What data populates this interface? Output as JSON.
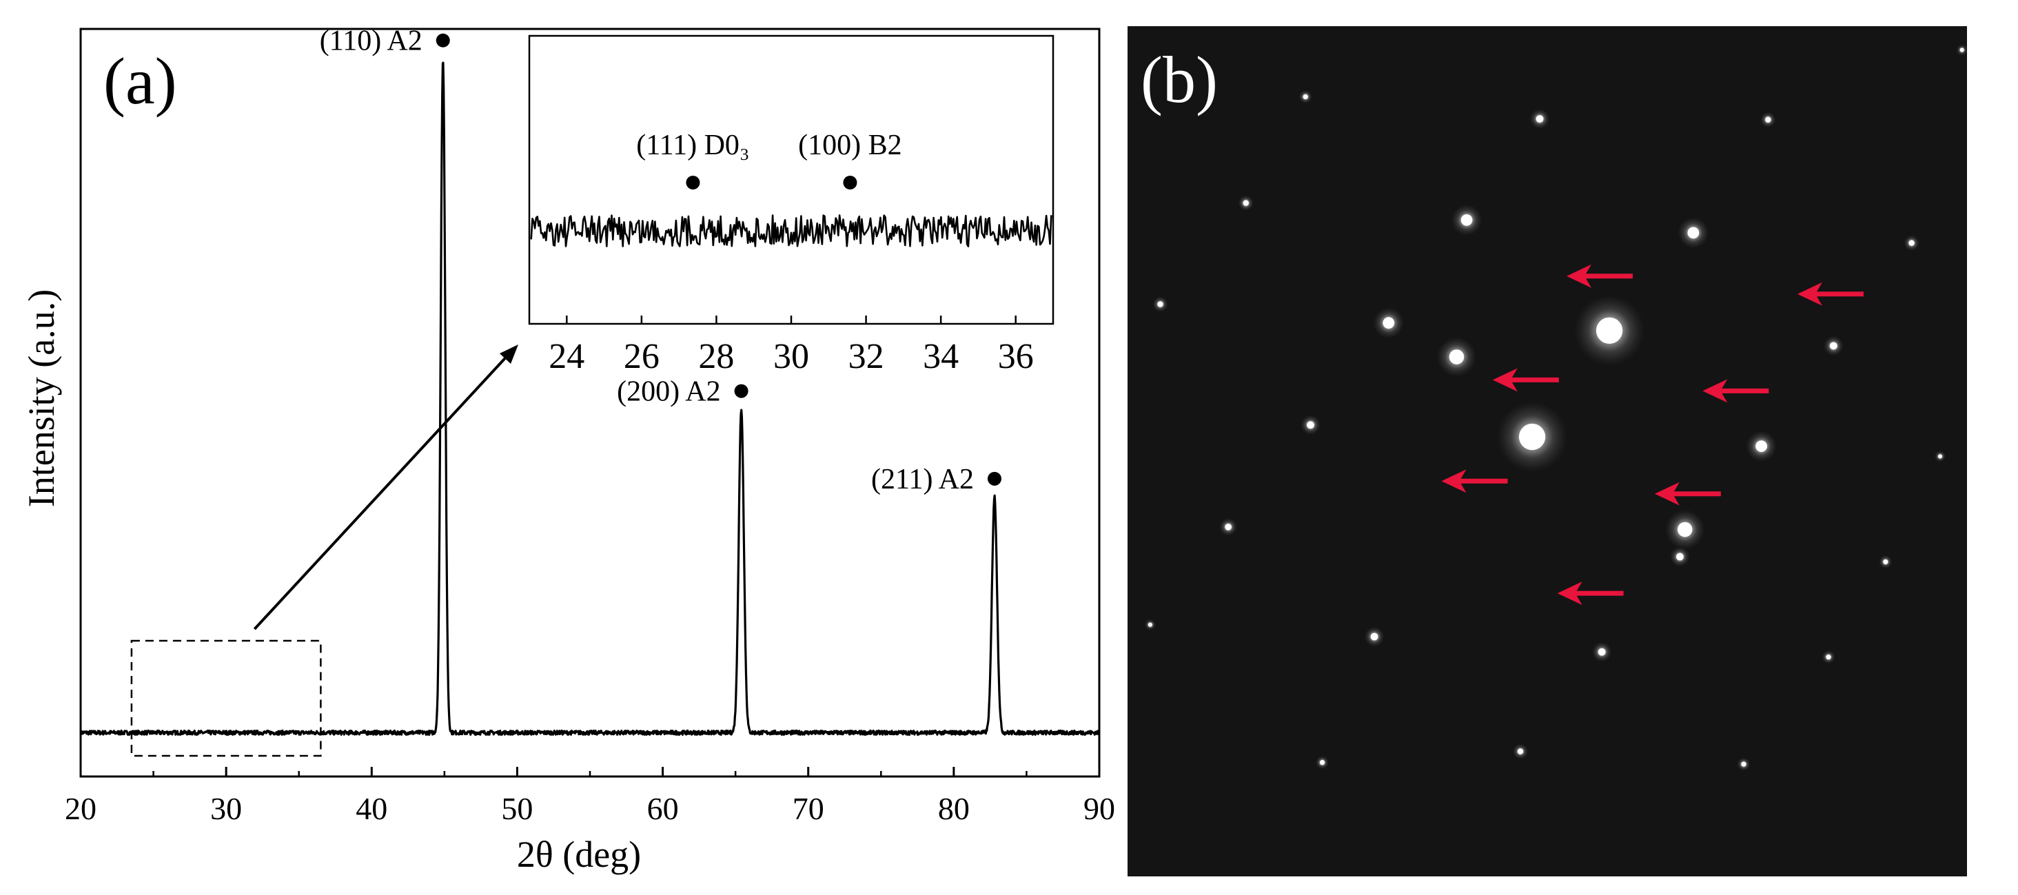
{
  "panels": {
    "a": {
      "label": "(a)"
    },
    "b": {
      "label": "(b)"
    }
  },
  "chart_data": [
    {
      "type": "line",
      "panel": "a",
      "xlabel": "2θ (deg)",
      "ylabel": "Intensity (a.u.)",
      "xlim": [
        20,
        90
      ],
      "xticks": [
        20,
        30,
        40,
        50,
        60,
        70,
        80,
        90
      ],
      "ylim": [
        0,
        1.08
      ],
      "baseline": 0.065,
      "peaks": [
        {
          "x": 44.9,
          "height": 1.0,
          "width": 0.22,
          "label": "(110) A2"
        },
        {
          "x": 65.4,
          "height": 0.48,
          "width": 0.25,
          "label": "(200) A2"
        },
        {
          "x": 82.8,
          "height": 0.35,
          "width": 0.25,
          "label": "(211) A2"
        }
      ],
      "zoom_box_x": [
        23.5,
        36.5
      ],
      "inset": {
        "type": "line",
        "xlim": [
          23,
          37
        ],
        "xticks": [
          24,
          26,
          28,
          30,
          32,
          34,
          36
        ],
        "ylim": [
          0,
          1
        ],
        "noise_level": 0.45,
        "markers": [
          {
            "x": 27.3,
            "label": "(111) D0₃"
          },
          {
            "x": 31.5,
            "label": "(100) B2"
          }
        ]
      }
    },
    {
      "type": "scatter",
      "panel": "b",
      "xlim": [
        0,
        1
      ],
      "ylim": [
        0,
        1
      ],
      "background_color": "#141414",
      "spot_color": "#ffffff",
      "arrow_color": "#e8143c",
      "spots": [
        {
          "x": 0.574,
          "y": 0.642,
          "size": 3.2
        },
        {
          "x": 0.482,
          "y": 0.517,
          "size": 3.2
        },
        {
          "x": 0.392,
          "y": 0.611,
          "size": 1.8
        },
        {
          "x": 0.664,
          "y": 0.408,
          "size": 1.8
        },
        {
          "x": 0.404,
          "y": 0.772,
          "size": 1.4
        },
        {
          "x": 0.674,
          "y": 0.757,
          "size": 1.4
        },
        {
          "x": 0.311,
          "y": 0.651,
          "size": 1.4
        },
        {
          "x": 0.755,
          "y": 0.506,
          "size": 1.4
        },
        {
          "x": 0.658,
          "y": 0.376,
          "size": 0.9
        },
        {
          "x": 0.218,
          "y": 0.531,
          "size": 0.9
        },
        {
          "x": 0.841,
          "y": 0.624,
          "size": 0.9
        },
        {
          "x": 0.294,
          "y": 0.282,
          "size": 0.9
        },
        {
          "x": 0.565,
          "y": 0.264,
          "size": 0.9
        },
        {
          "x": 0.491,
          "y": 0.891,
          "size": 0.9
        },
        {
          "x": 0.763,
          "y": 0.89,
          "size": 0.7
        },
        {
          "x": 0.12,
          "y": 0.411,
          "size": 0.8
        },
        {
          "x": 0.141,
          "y": 0.792,
          "size": 0.7
        },
        {
          "x": 0.039,
          "y": 0.673,
          "size": 0.7
        },
        {
          "x": 0.934,
          "y": 0.745,
          "size": 0.7
        },
        {
          "x": 0.903,
          "y": 0.37,
          "size": 0.6
        },
        {
          "x": 0.212,
          "y": 0.917,
          "size": 0.6
        },
        {
          "x": 0.232,
          "y": 0.134,
          "size": 0.6
        },
        {
          "x": 0.734,
          "y": 0.132,
          "size": 0.6
        },
        {
          "x": 0.468,
          "y": 0.147,
          "size": 0.7
        },
        {
          "x": 0.835,
          "y": 0.258,
          "size": 0.6
        },
        {
          "x": 0.027,
          "y": 0.296,
          "size": 0.5
        },
        {
          "x": 0.968,
          "y": 0.494,
          "size": 0.5
        },
        {
          "x": 0.994,
          "y": 0.972,
          "size": 0.5
        }
      ],
      "arrows": [
        {
          "x": 0.523,
          "y": 0.706
        },
        {
          "x": 0.798,
          "y": 0.685
        },
        {
          "x": 0.435,
          "y": 0.584
        },
        {
          "x": 0.685,
          "y": 0.571
        },
        {
          "x": 0.374,
          "y": 0.465
        },
        {
          "x": 0.628,
          "y": 0.45
        },
        {
          "x": 0.512,
          "y": 0.333
        }
      ]
    }
  ]
}
